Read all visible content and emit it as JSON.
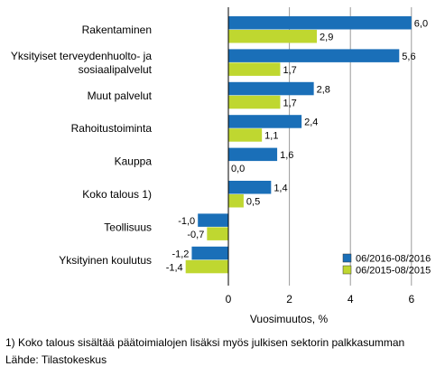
{
  "chart_data": {
    "type": "bar",
    "orientation": "horizontal",
    "categories": [
      [
        "Rakentaminen"
      ],
      [
        "Yksityiset terveydenhuolto- ja",
        "sosiaalipalvelut"
      ],
      [
        "Muut palvelut"
      ],
      [
        "Rahoitustoiminta"
      ],
      [
        "Kauppa"
      ],
      [
        "Koko talous 1)"
      ],
      [
        "Teollisuus"
      ],
      [
        "Yksityinen koulutus"
      ]
    ],
    "series": [
      {
        "name": "06/2016-08/2016",
        "color": "#1a6fb8",
        "values": [
          6.0,
          5.6,
          2.8,
          2.4,
          1.6,
          1.4,
          -1.0,
          -1.2
        ],
        "labels": [
          "6,0",
          "5,6",
          "2,8",
          "2,4",
          "1,6",
          "1,4",
          "-1,0",
          "-1,2"
        ]
      },
      {
        "name": "06/2015-08/2015",
        "color": "#bfd730",
        "values": [
          2.9,
          1.7,
          1.7,
          1.1,
          0.0,
          0.5,
          -0.7,
          -1.4
        ],
        "labels": [
          "2,9",
          "1,7",
          "1,7",
          "1,1",
          "0,0",
          "0,5",
          "-0,7",
          "-1,4"
        ]
      }
    ],
    "xticks": [
      0,
      2,
      4,
      6
    ],
    "xlim": [
      -2.3,
      6.6
    ],
    "xlabel": "Vuosimuutos, %",
    "grid": true,
    "legend_position": "bottom-right"
  },
  "notes": {
    "footnote": "1) Koko talous sisältää päätoimialojen lisäksi myös julkisen sektorin palkkasumman",
    "source": "Lähde: Tilastokeskus"
  }
}
